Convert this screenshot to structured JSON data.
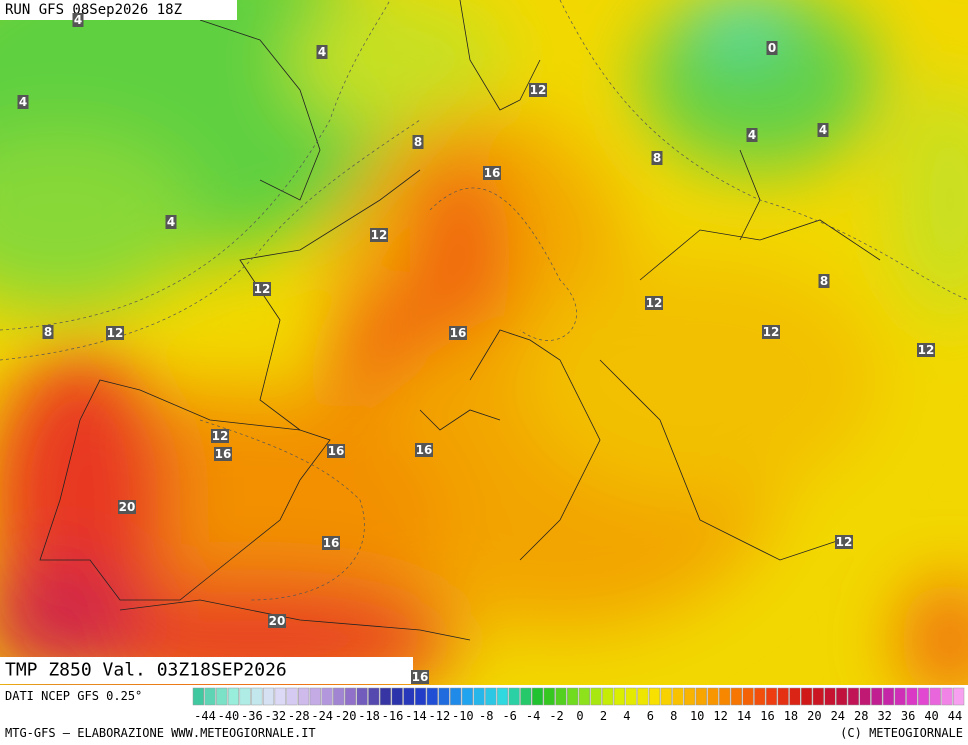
{
  "header": {
    "run": "RUN GFS 08Sep2026 18Z"
  },
  "map": {
    "title": "TMP Z850 Val. 03Z18SEP2026",
    "contour_labels": [
      4,
      4,
      0,
      4,
      12,
      8,
      4,
      4,
      8,
      16,
      4,
      12,
      8,
      12,
      12,
      8,
      12,
      16,
      12,
      12,
      12,
      16,
      16,
      16,
      20,
      16,
      12,
      20,
      16
    ]
  },
  "footer": {
    "source": "DATI NCEP GFS 0.25°",
    "credit": "MTG-GFS — ELABORAZIONE WWW.METEOGIORNALE.IT",
    "copyright": "(C) METEOGIORNALE"
  },
  "colorbar": {
    "labels": [
      -44,
      -40,
      -36,
      -32,
      -28,
      -24,
      -20,
      -18,
      -16,
      -14,
      -12,
      -10,
      -8,
      -6,
      -4,
      -2,
      0,
      2,
      4,
      6,
      8,
      10,
      12,
      14,
      16,
      18,
      20,
      24,
      28,
      32,
      36,
      40,
      44
    ]
  }
}
